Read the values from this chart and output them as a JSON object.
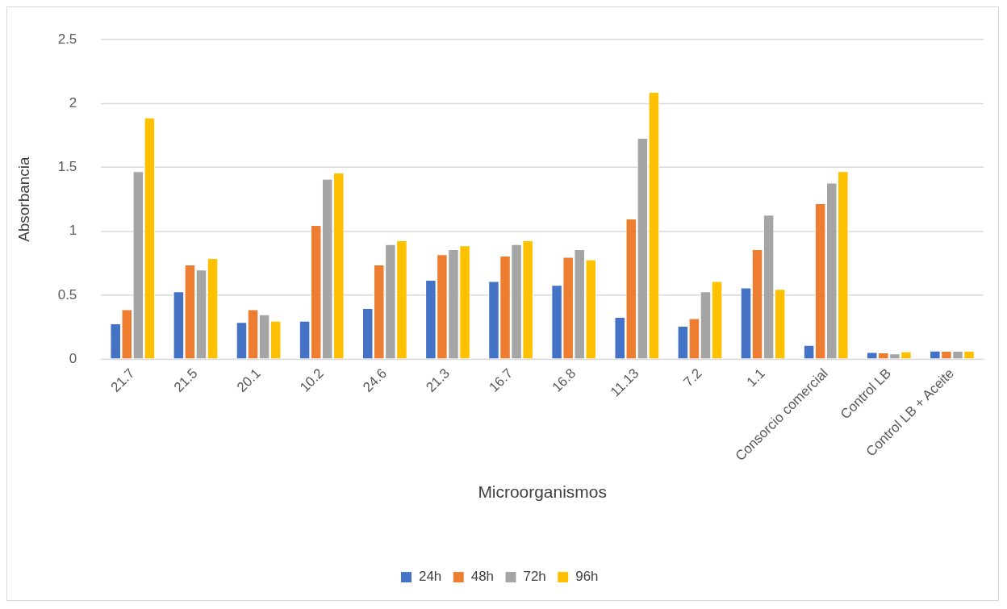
{
  "chart_data": {
    "type": "bar",
    "xlabel": "Microorganismos",
    "ylabel": "Absorbancia",
    "categories": [
      "21.7",
      "21.5",
      "20.1",
      "10.2",
      "24.6",
      "21.3",
      "16.7",
      "16.8",
      "11.13",
      "7.2",
      "1.1",
      "Consorcio comercial",
      "Control LB",
      "Control LB + Aceite"
    ],
    "series": [
      {
        "name": "24h",
        "color": "#4472c4",
        "values": [
          0.28,
          0.53,
          0.29,
          0.3,
          0.4,
          0.62,
          0.61,
          0.58,
          0.33,
          0.26,
          0.56,
          0.11,
          0.055,
          0.067
        ]
      },
      {
        "name": "48h",
        "color": "#ed7d31",
        "values": [
          0.39,
          0.74,
          0.39,
          1.05,
          0.74,
          0.82,
          0.81,
          0.8,
          1.1,
          0.32,
          0.86,
          1.22,
          0.053,
          0.065
        ]
      },
      {
        "name": "72h",
        "color": "#a5a5a5",
        "values": [
          1.47,
          0.7,
          0.35,
          1.41,
          0.9,
          0.86,
          0.9,
          0.86,
          1.73,
          0.53,
          1.13,
          1.38,
          0.044,
          0.065
        ]
      },
      {
        "name": "96h",
        "color": "#ffc000",
        "values": [
          1.89,
          0.79,
          0.3,
          1.46,
          0.93,
          0.89,
          0.93,
          0.78,
          2.09,
          0.61,
          0.55,
          1.47,
          0.061,
          0.065
        ]
      }
    ],
    "ylim": [
      0,
      2.5
    ],
    "yticks": [
      0,
      0.5,
      1,
      1.5,
      2,
      2.5
    ],
    "grid": "y",
    "legend": "bottom"
  }
}
